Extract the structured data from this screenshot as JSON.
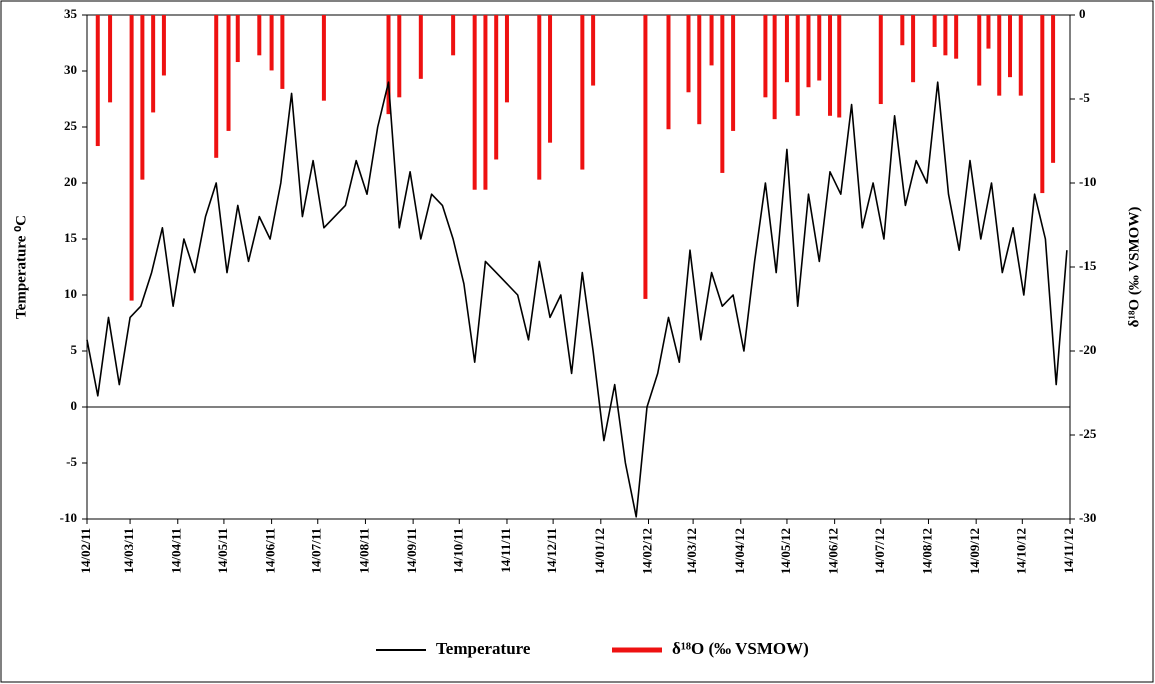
{
  "chart_data": {
    "type": "line_bar",
    "ylabel": "Temperature ⁰C",
    "y2label": "δ¹⁸O (‰ VSMOW)",
    "xlim": [
      "2011-02-14",
      "2012-11-14"
    ],
    "xticks": [
      {
        "value": "2011-02-14",
        "label": "14/02/11"
      },
      {
        "value": "2011-03-14",
        "label": "14/03/11"
      },
      {
        "value": "2011-04-14",
        "label": "14/04/11"
      },
      {
        "value": "2011-05-14",
        "label": "14/05/11"
      },
      {
        "value": "2011-06-14",
        "label": "14/06/11"
      },
      {
        "value": "2011-07-14",
        "label": "14/07/11"
      },
      {
        "value": "2011-08-14",
        "label": "14/08/11"
      },
      {
        "value": "2011-09-14",
        "label": "14/09/11"
      },
      {
        "value": "2011-10-14",
        "label": "14/10/11"
      },
      {
        "value": "2011-11-14",
        "label": "14/11/11"
      },
      {
        "value": "2011-12-14",
        "label": "14/12/11"
      },
      {
        "value": "2012-01-14",
        "label": "14/01/12"
      },
      {
        "value": "2012-02-14",
        "label": "14/02/12"
      },
      {
        "value": "2012-03-14",
        "label": "14/03/12"
      },
      {
        "value": "2012-04-14",
        "label": "14/04/12"
      },
      {
        "value": "2012-05-14",
        "label": "14/05/12"
      },
      {
        "value": "2012-06-14",
        "label": "14/06/12"
      },
      {
        "value": "2012-07-14",
        "label": "14/07/12"
      },
      {
        "value": "2012-08-14",
        "label": "14/08/12"
      },
      {
        "value": "2012-09-14",
        "label": "14/09/12"
      },
      {
        "value": "2012-10-14",
        "label": "14/10/12"
      },
      {
        "value": "2012-11-14",
        "label": "14/11/12"
      }
    ],
    "ylim": [
      -10,
      35
    ],
    "yticks": [
      -10,
      -5,
      0,
      5,
      10,
      15,
      20,
      25,
      30,
      35
    ],
    "y2lim": [
      -30,
      0
    ],
    "y2ticks": [
      -30,
      -25,
      -20,
      -15,
      -10,
      -5,
      0
    ],
    "series": [
      {
        "name": "Temperature",
        "type": "line",
        "color": "#000000",
        "x": [
          "2011-02-14",
          "2011-02-21",
          "2011-02-28",
          "2011-03-07",
          "2011-03-14",
          "2011-03-21",
          "2011-03-28",
          "2011-04-04",
          "2011-04-11",
          "2011-04-18",
          "2011-04-25",
          "2011-05-02",
          "2011-05-09",
          "2011-05-16",
          "2011-05-23",
          "2011-05-30",
          "2011-06-06",
          "2011-06-13",
          "2011-06-20",
          "2011-06-27",
          "2011-07-04",
          "2011-07-11",
          "2011-07-18",
          "2011-07-25",
          "2011-08-01",
          "2011-08-08",
          "2011-08-15",
          "2011-08-22",
          "2011-08-29",
          "2011-09-05",
          "2011-09-12",
          "2011-09-19",
          "2011-09-26",
          "2011-10-03",
          "2011-10-10",
          "2011-10-17",
          "2011-10-24",
          "2011-10-31",
          "2011-11-07",
          "2011-11-14",
          "2011-11-21",
          "2011-11-28",
          "2011-12-05",
          "2011-12-12",
          "2011-12-19",
          "2011-12-26",
          "2012-01-02",
          "2012-01-09",
          "2012-01-16",
          "2012-01-23",
          "2012-01-30",
          "2012-02-06",
          "2012-02-13",
          "2012-02-20",
          "2012-02-27",
          "2012-03-05",
          "2012-03-12",
          "2012-03-19",
          "2012-03-26",
          "2012-04-02",
          "2012-04-09",
          "2012-04-16",
          "2012-04-23",
          "2012-04-30",
          "2012-05-07",
          "2012-05-14",
          "2012-05-21",
          "2012-05-28",
          "2012-06-04",
          "2012-06-11",
          "2012-06-18",
          "2012-06-25",
          "2012-07-02",
          "2012-07-09",
          "2012-07-16",
          "2012-07-23",
          "2012-07-30",
          "2012-08-06",
          "2012-08-13",
          "2012-08-20",
          "2012-08-27",
          "2012-09-03",
          "2012-09-10",
          "2012-09-17",
          "2012-09-24",
          "2012-10-01",
          "2012-10-08",
          "2012-10-15",
          "2012-10-22",
          "2012-10-29",
          "2012-11-05",
          "2012-11-12"
        ],
        "values": [
          6,
          1,
          8,
          2,
          8,
          9,
          12,
          16,
          9,
          15,
          12,
          17,
          20,
          12,
          18,
          13,
          17,
          15,
          20,
          28,
          17,
          22,
          16,
          17,
          18,
          22,
          19,
          25,
          29,
          16,
          21,
          15,
          19,
          18,
          15,
          11,
          4,
          13,
          12,
          11,
          10,
          6,
          13,
          8,
          10,
          3,
          12,
          5,
          -3,
          2,
          -5,
          -9.8,
          0,
          3,
          8,
          4,
          14,
          6,
          12,
          9,
          10,
          5,
          13,
          20,
          12,
          23,
          9,
          19,
          13,
          21,
          19,
          27,
          16,
          20,
          15,
          26,
          18,
          22,
          20,
          29,
          19,
          14,
          22,
          15,
          20,
          12,
          16,
          10,
          19,
          15,
          2,
          14
        ]
      },
      {
        "name": "δ¹⁸O (‰ VSMOW)",
        "type": "bar",
        "axis": "y2",
        "color": "#ee1111",
        "x": [
          "2011-02-21",
          "2011-03-01",
          "2011-03-15",
          "2011-03-22",
          "2011-03-29",
          "2011-04-05",
          "2011-05-09",
          "2011-05-17",
          "2011-05-23",
          "2011-06-06",
          "2011-06-14",
          "2011-06-21",
          "2011-07-18",
          "2011-08-29",
          "2011-09-05",
          "2011-09-19",
          "2011-10-10",
          "2011-10-24",
          "2011-10-31",
          "2011-11-07",
          "2011-11-14",
          "2011-12-05",
          "2011-12-12",
          "2012-01-02",
          "2012-01-09",
          "2012-02-12",
          "2012-02-27",
          "2012-03-11",
          "2012-03-18",
          "2012-03-26",
          "2012-04-02",
          "2012-04-09",
          "2012-04-30",
          "2012-05-06",
          "2012-05-14",
          "2012-05-21",
          "2012-05-28",
          "2012-06-04",
          "2012-06-11",
          "2012-06-17",
          "2012-07-14",
          "2012-07-28",
          "2012-08-04",
          "2012-08-18",
          "2012-08-25",
          "2012-09-01",
          "2012-09-16",
          "2012-09-22",
          "2012-09-29",
          "2012-10-06",
          "2012-10-13",
          "2012-10-27",
          "2012-11-03"
        ],
        "values": [
          -7.8,
          -5.2,
          -17,
          -9.8,
          -5.8,
          -3.6,
          -8.5,
          -6.9,
          -2.8,
          -2.4,
          -3.3,
          -4.4,
          -5.1,
          -5.9,
          -4.9,
          -3.8,
          -2.4,
          -10.4,
          -10.4,
          -8.6,
          -5.2,
          -9.8,
          -7.6,
          -9.2,
          -4.2,
          -16.9,
          -6.8,
          -4.6,
          -6.5,
          -3,
          -9.4,
          -6.9,
          -4.9,
          -6.2,
          -4,
          -6,
          -4.3,
          -3.9,
          -6,
          -6.1,
          -5.3,
          -1.8,
          -4,
          -1.9,
          -2.4,
          -2.6,
          -4.2,
          -2,
          -4.8,
          -3.7,
          -4.8,
          -10.6,
          -8.8
        ]
      }
    ]
  }
}
